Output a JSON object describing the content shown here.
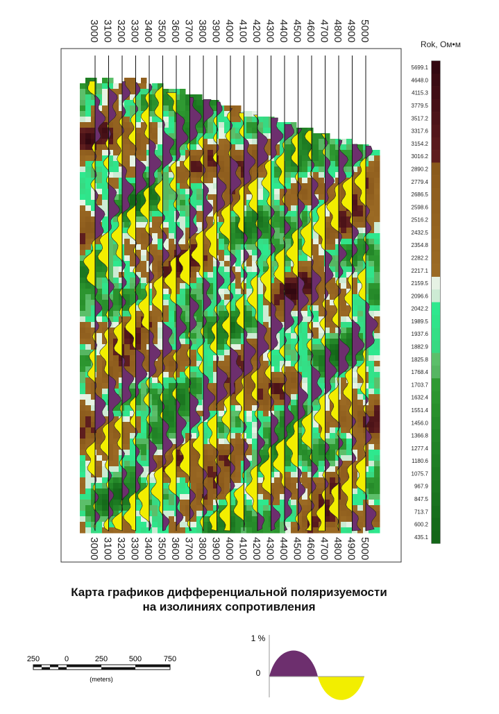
{
  "profiles_top": [
    "3000",
    "3100",
    "3200",
    "3300",
    "3400",
    "3500",
    "3600",
    "3700",
    "3800",
    "3900",
    "4000",
    "4100",
    "4200",
    "4300",
    "4400",
    "4500",
    "4600",
    "4700",
    "4800",
    "4900",
    "5000"
  ],
  "profiles_bottom": [
    "3000",
    "3100",
    "3200",
    "3300",
    "3400",
    "3500",
    "3600",
    "3700",
    "3800",
    "3900",
    "4000",
    "4100",
    "4200",
    "4300",
    "4400",
    "4500",
    "4600",
    "4700",
    "4800",
    "4900",
    "5000"
  ],
  "colorbar": {
    "title": "Rok, Ом•м",
    "levels": [
      "5699.1",
      "4648.0",
      "4115.3",
      "3779.5",
      "3517.2",
      "3317.6",
      "3154.2",
      "3016.2",
      "2890.2",
      "2779.4",
      "2686.5",
      "2598.6",
      "2516.2",
      "2432.5",
      "2354.8",
      "2282.2",
      "2217.1",
      "2159.5",
      "2096.6",
      "2042.2",
      "1989.5",
      "1937.6",
      "1882.9",
      "1825.8",
      "1768.4",
      "1703.7",
      "1632.4",
      "1551.4",
      "1456.0",
      "1366.8",
      "1277.4",
      "1180.6",
      "1075.7",
      "967.9",
      "847.5",
      "713.7",
      "600.2",
      "435.1"
    ],
    "colors": [
      "#320810",
      "#3a0b12",
      "#400d14",
      "#461016",
      "#4c1318",
      "#52161a",
      "#581a1c",
      "#5e1e1e",
      "#8a5a1c",
      "#8d5c1d",
      "#8f5e1e",
      "#91601f",
      "#936220",
      "#956421",
      "#976622",
      "#996823",
      "#9b6a24",
      "#e6f2e4",
      "#cdebd4",
      "#2ee88e",
      "#30e48a",
      "#34df86",
      "#38d982",
      "#5cbf6a",
      "#56b662",
      "#2f9a32",
      "#2c952f",
      "#29902c",
      "#268b2a",
      "#238628",
      "#218226",
      "#1f7e24",
      "#1d7a22",
      "#1b7620",
      "#19721e",
      "#176e1c",
      "#156a1a",
      "#146618"
    ]
  },
  "title": [
    "Карта графиков дифференциальной поляризуемости",
    "на изолиниях сопротивления"
  ],
  "scale": {
    "labels": [
      "250",
      "0",
      "250",
      "500",
      "750"
    ],
    "unit": "(meters)"
  },
  "legend": {
    "top": "1 %",
    "zero": "0"
  }
}
